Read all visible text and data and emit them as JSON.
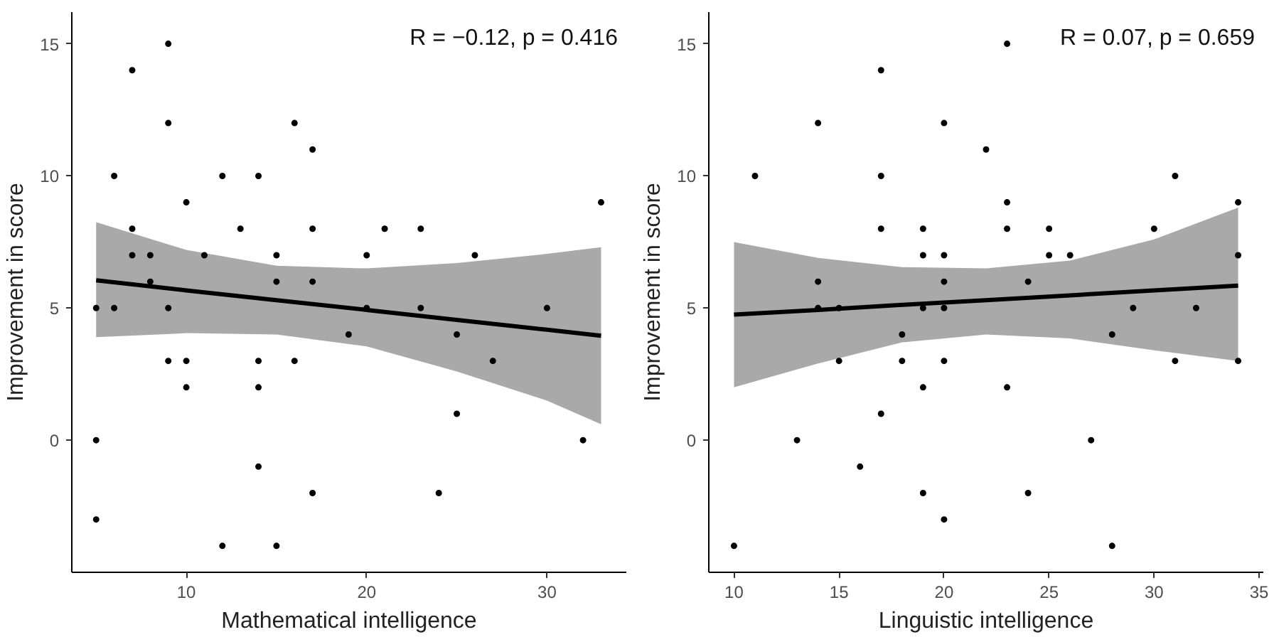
{
  "chart_data": [
    {
      "type": "scatter",
      "xlabel": "Mathematical intelligence",
      "ylabel": "Improvement in score",
      "xlim": [
        3.65,
        34.4
      ],
      "ylim": [
        -5,
        16.2
      ],
      "xticks": [
        10,
        20,
        30
      ],
      "yticks": [
        0,
        5,
        10,
        15
      ],
      "grid": false,
      "annotations": [
        "R = −0.12, p = 0.416"
      ],
      "series": [
        {
          "marker": "circle",
          "color": "#000000",
          "x": [
            9,
            7,
            9,
            16,
            17,
            6,
            12,
            14,
            10,
            33,
            7,
            13,
            17,
            21,
            23,
            7,
            8,
            11,
            15,
            20,
            26,
            8,
            15,
            17,
            5,
            6,
            9,
            20,
            23,
            30,
            19,
            25,
            9,
            10,
            14,
            16,
            27,
            10,
            14,
            25,
            5,
            32,
            14,
            17,
            24,
            5,
            12,
            15
          ],
          "values": [
            15,
            14,
            12,
            12,
            11,
            10,
            10,
            10,
            9,
            9,
            8,
            8,
            8,
            8,
            8,
            7,
            7,
            7,
            7,
            7,
            7,
            6,
            6,
            6,
            5,
            5,
            5,
            5,
            5,
            5,
            4,
            4,
            3,
            3,
            3,
            3,
            3,
            2,
            2,
            1,
            0,
            0,
            -1,
            -2,
            -2,
            -3,
            -4,
            -4
          ]
        },
        {
          "type": "line",
          "color": "#000000",
          "x": [
            5,
            10,
            15,
            20,
            25,
            30,
            33
          ],
          "values": [
            6.05,
            5.67,
            5.3,
            4.93,
            4.55,
            4.18,
            3.95
          ],
          "lower": [
            3.9,
            4.05,
            4.0,
            3.55,
            2.6,
            1.5,
            0.6
          ],
          "upper": [
            8.25,
            7.2,
            6.6,
            6.5,
            6.7,
            7.05,
            7.3
          ]
        }
      ]
    },
    {
      "type": "scatter",
      "xlabel": "Linguistic intelligence",
      "ylabel": "Improvement in score",
      "xlim": [
        8.8,
        35.2
      ],
      "ylim": [
        -5,
        16.2
      ],
      "xticks": [
        10,
        15,
        20,
        25,
        30,
        35
      ],
      "yticks": [
        0,
        5,
        10,
        15
      ],
      "grid": false,
      "annotations": [
        "R = 0.07, p = 0.659"
      ],
      "series": [
        {
          "marker": "circle",
          "color": "#000000",
          "x": [
            23,
            17,
            14,
            20,
            22,
            11,
            17,
            31,
            23,
            34,
            17,
            19,
            23,
            25,
            30,
            19,
            20,
            25,
            26,
            34,
            14,
            20,
            24,
            14,
            15,
            19,
            20,
            29,
            32,
            18,
            28,
            15,
            18,
            20,
            31,
            34,
            19,
            23,
            17,
            13,
            27,
            16,
            19,
            24,
            20,
            10,
            28
          ],
          "values": [
            15,
            14,
            12,
            12,
            11,
            10,
            10,
            10,
            9,
            9,
            8,
            8,
            8,
            8,
            8,
            7,
            7,
            7,
            7,
            7,
            6,
            6,
            6,
            5,
            5,
            5,
            5,
            5,
            5,
            4,
            4,
            3,
            3,
            3,
            3,
            3,
            2,
            2,
            1,
            0,
            0,
            -1,
            -2,
            -2,
            -3,
            -4,
            -4
          ]
        },
        {
          "type": "line",
          "color": "#000000",
          "x": [
            10,
            14,
            18,
            22,
            26,
            30,
            34
          ],
          "values": [
            4.75,
            4.93,
            5.12,
            5.3,
            5.48,
            5.67,
            5.85
          ],
          "lower": [
            2.0,
            2.9,
            3.7,
            4.0,
            3.85,
            3.4,
            3.0
          ],
          "upper": [
            7.5,
            6.9,
            6.55,
            6.5,
            6.8,
            7.6,
            8.8
          ]
        }
      ]
    }
  ]
}
